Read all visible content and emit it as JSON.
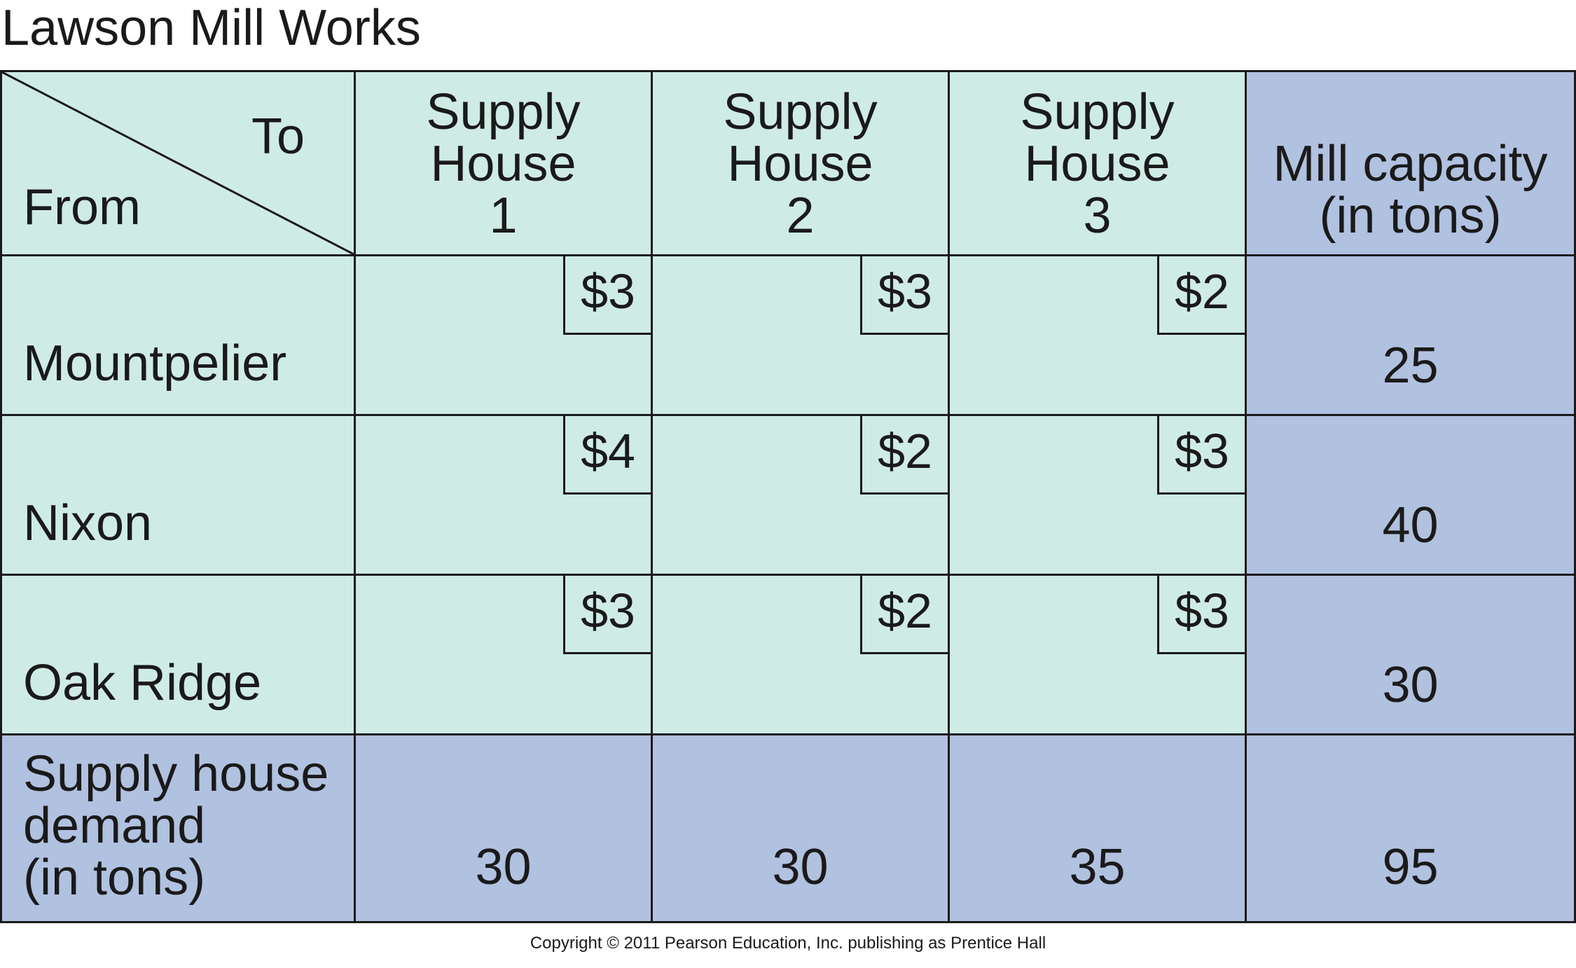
{
  "title": "Lawson Mill Works",
  "corner": {
    "to": "To",
    "from": "From"
  },
  "columns": [
    {
      "line1": "Supply",
      "line2": "House",
      "line3": "1"
    },
    {
      "line1": "Supply",
      "line2": "House",
      "line3": "2"
    },
    {
      "line1": "Supply",
      "line2": "House",
      "line3": "3"
    }
  ],
  "capacity_header": {
    "line1": "Mill capacity",
    "line2": "(in tons)"
  },
  "rows": [
    {
      "label": "Mountpelier",
      "costs": [
        "$3",
        "$3",
        "$2"
      ],
      "capacity": "25"
    },
    {
      "label": "Nixon",
      "costs": [
        "$4",
        "$2",
        "$3"
      ],
      "capacity": "40"
    },
    {
      "label": "Oak Ridge",
      "costs": [
        "$3",
        "$2",
        "$3"
      ],
      "capacity": "30"
    }
  ],
  "demand_row": {
    "line1": "Supply house",
    "line2": "demand",
    "line3": "(in tons)",
    "values": [
      "30",
      "30",
      "35"
    ],
    "total": "95"
  },
  "copyright": "Copyright © 2011 Pearson Education, Inc. publishing as Prentice Hall",
  "colors": {
    "cell_light": "#cfebe5",
    "cell_blue": "#b1c1e0",
    "border": "#1a1a1a"
  }
}
